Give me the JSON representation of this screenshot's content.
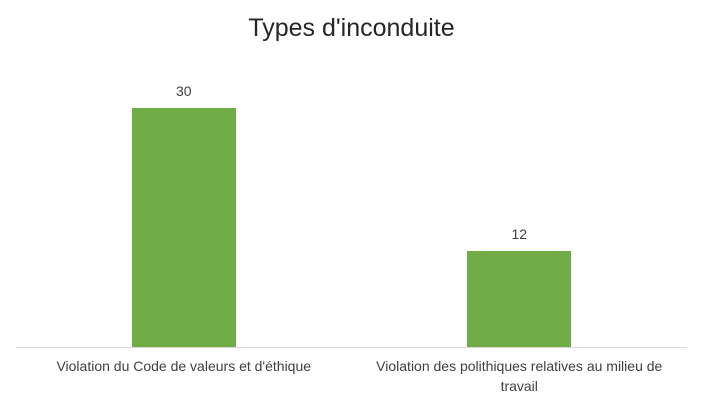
{
  "chart_data": {
    "type": "bar",
    "title": "Types d'inconduite",
    "categories": [
      "Violation du Code de valeurs et d'éthique",
      "Violation des polithiques relatives au milieu de travail"
    ],
    "values": [
      30,
      12
    ],
    "data_labels": [
      "30",
      "12"
    ],
    "xlabel": "",
    "ylabel": "",
    "ylim": [
      0,
      35
    ],
    "grid": false,
    "legend": false,
    "y_axis_visible": false,
    "bar_color": "#70AD47",
    "axis_line_color": "#D9D9D9",
    "title_color": "#262626",
    "label_color": "#404040",
    "background_color": "#FFFFFF"
  }
}
